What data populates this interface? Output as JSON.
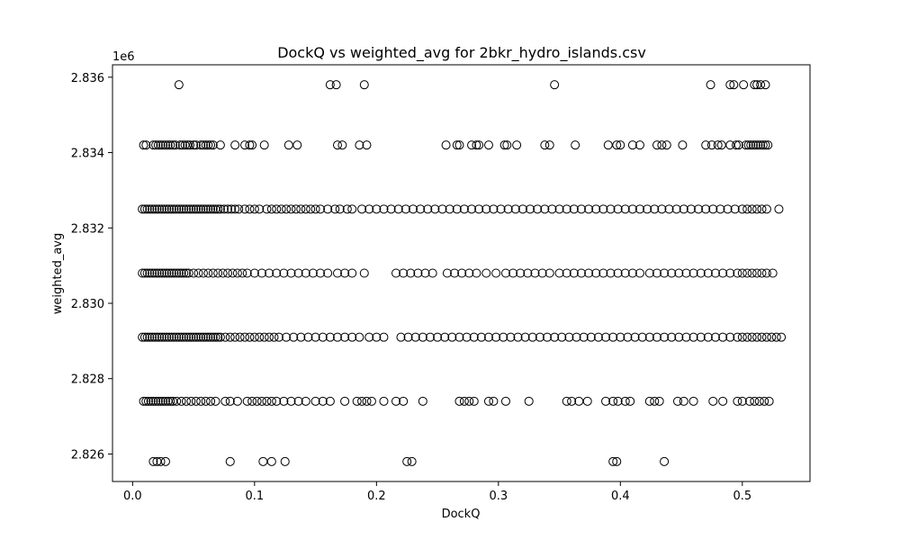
{
  "chart_data": {
    "type": "scatter",
    "title": "DockQ vs weighted_avg for 2bkr_hydro_islands.csv",
    "xlabel": "DockQ",
    "ylabel": "weighted_avg",
    "y_offset_label": "1e6",
    "xlim": [
      -0.0165,
      0.5555
    ],
    "ylim": [
      2825.27,
      2836.33
    ],
    "x_ticks": [
      0.0,
      0.1,
      0.2,
      0.3,
      0.4,
      0.5
    ],
    "x_tick_labels": [
      "0.0",
      "0.1",
      "0.2",
      "0.3",
      "0.4",
      "0.5"
    ],
    "y_ticks": [
      2826,
      2828,
      2830,
      2832,
      2834,
      2836
    ],
    "y_tick_labels": [
      "2.826",
      "2.828",
      "2.830",
      "2.832",
      "2.834",
      "2.836"
    ],
    "grid": false,
    "marker": "hollow-circle",
    "marker_color": "#000000",
    "series": [
      {
        "rows": [
          {
            "y": 2835.8,
            "x": [
              0.038,
              0.162,
              0.167,
              0.19,
              0.346,
              0.474,
              0.49,
              0.493,
              0.501,
              0.51,
              0.512,
              0.515,
              0.519
            ]
          },
          {
            "y": 2834.2,
            "x": [
              0.009,
              0.011,
              0.017,
              0.019,
              0.021,
              0.023,
              0.025,
              0.027,
              0.029,
              0.031,
              0.033,
              0.035,
              0.039,
              0.041,
              0.043,
              0.045,
              0.047,
              0.05,
              0.052,
              0.056,
              0.058,
              0.06,
              0.062,
              0.064,
              0.066,
              0.072,
              0.084,
              0.092,
              0.096,
              0.098,
              0.108,
              0.128,
              0.135,
              0.168,
              0.172,
              0.186,
              0.192,
              0.257,
              0.266,
              0.268,
              0.278,
              0.282,
              0.284,
              0.292,
              0.305,
              0.307,
              0.315,
              0.338,
              0.342,
              0.363,
              0.39,
              0.397,
              0.4,
              0.41,
              0.416,
              0.43,
              0.434,
              0.438,
              0.451,
              0.47,
              0.475,
              0.48,
              0.483,
              0.49,
              0.495,
              0.497,
              0.503,
              0.505,
              0.507,
              0.509,
              0.511,
              0.513,
              0.515,
              0.517,
              0.519,
              0.521
            ]
          },
          {
            "y": 2832.5,
            "x": [
              0.008,
              0.01,
              0.012,
              0.014,
              0.016,
              0.018,
              0.02,
              0.022,
              0.024,
              0.026,
              0.028,
              0.03,
              0.032,
              0.034,
              0.036,
              0.038,
              0.04,
              0.042,
              0.044,
              0.046,
              0.048,
              0.05,
              0.052,
              0.054,
              0.056,
              0.058,
              0.06,
              0.062,
              0.064,
              0.066,
              0.068,
              0.07,
              0.072,
              0.075,
              0.078,
              0.081,
              0.084,
              0.087,
              0.092,
              0.096,
              0.1,
              0.104,
              0.11,
              0.114,
              0.118,
              0.122,
              0.126,
              0.13,
              0.134,
              0.138,
              0.142,
              0.146,
              0.15,
              0.154,
              0.16,
              0.166,
              0.17,
              0.176,
              0.18,
              0.188,
              0.194,
              0.2,
              0.206,
              0.212,
              0.218,
              0.224,
              0.23,
              0.236,
              0.242,
              0.248,
              0.254,
              0.26,
              0.266,
              0.272,
              0.278,
              0.284,
              0.29,
              0.296,
              0.302,
              0.308,
              0.314,
              0.32,
              0.326,
              0.332,
              0.338,
              0.344,
              0.35,
              0.356,
              0.362,
              0.368,
              0.374,
              0.38,
              0.386,
              0.392,
              0.398,
              0.404,
              0.41,
              0.416,
              0.422,
              0.428,
              0.434,
              0.44,
              0.446,
              0.452,
              0.458,
              0.464,
              0.47,
              0.476,
              0.482,
              0.488,
              0.494,
              0.5,
              0.504,
              0.508,
              0.512,
              0.516,
              0.52,
              0.53
            ]
          },
          {
            "y": 2830.8,
            "x": [
              0.008,
              0.01,
              0.012,
              0.014,
              0.016,
              0.018,
              0.02,
              0.022,
              0.024,
              0.026,
              0.028,
              0.03,
              0.032,
              0.034,
              0.036,
              0.038,
              0.04,
              0.042,
              0.044,
              0.046,
              0.05,
              0.054,
              0.058,
              0.062,
              0.066,
              0.07,
              0.074,
              0.078,
              0.082,
              0.086,
              0.09,
              0.094,
              0.1,
              0.106,
              0.112,
              0.118,
              0.124,
              0.13,
              0.136,
              0.142,
              0.148,
              0.154,
              0.16,
              0.168,
              0.174,
              0.18,
              0.19,
              0.216,
              0.222,
              0.228,
              0.234,
              0.24,
              0.246,
              0.258,
              0.264,
              0.27,
              0.276,
              0.282,
              0.29,
              0.298,
              0.306,
              0.312,
              0.318,
              0.324,
              0.33,
              0.336,
              0.342,
              0.35,
              0.356,
              0.362,
              0.368,
              0.374,
              0.38,
              0.386,
              0.392,
              0.398,
              0.404,
              0.41,
              0.416,
              0.424,
              0.43,
              0.436,
              0.442,
              0.448,
              0.454,
              0.46,
              0.466,
              0.472,
              0.478,
              0.484,
              0.49,
              0.496,
              0.5,
              0.504,
              0.508,
              0.512,
              0.516,
              0.52,
              0.525
            ]
          },
          {
            "y": 2829.1,
            "x": [
              0.008,
              0.01,
              0.012,
              0.014,
              0.016,
              0.018,
              0.02,
              0.022,
              0.024,
              0.026,
              0.028,
              0.03,
              0.032,
              0.034,
              0.036,
              0.038,
              0.04,
              0.042,
              0.044,
              0.046,
              0.048,
              0.05,
              0.052,
              0.054,
              0.056,
              0.058,
              0.06,
              0.062,
              0.064,
              0.066,
              0.068,
              0.07,
              0.072,
              0.076,
              0.08,
              0.084,
              0.088,
              0.092,
              0.096,
              0.1,
              0.104,
              0.108,
              0.112,
              0.116,
              0.12,
              0.126,
              0.132,
              0.138,
              0.144,
              0.15,
              0.156,
              0.162,
              0.168,
              0.174,
              0.18,
              0.186,
              0.194,
              0.2,
              0.206,
              0.22,
              0.226,
              0.232,
              0.238,
              0.244,
              0.25,
              0.256,
              0.262,
              0.268,
              0.274,
              0.28,
              0.286,
              0.292,
              0.298,
              0.304,
              0.31,
              0.316,
              0.322,
              0.328,
              0.334,
              0.34,
              0.346,
              0.352,
              0.358,
              0.364,
              0.37,
              0.376,
              0.382,
              0.388,
              0.394,
              0.4,
              0.406,
              0.412,
              0.418,
              0.424,
              0.43,
              0.436,
              0.442,
              0.448,
              0.454,
              0.46,
              0.466,
              0.472,
              0.478,
              0.484,
              0.49,
              0.496,
              0.5,
              0.504,
              0.508,
              0.512,
              0.516,
              0.52,
              0.524,
              0.528,
              0.532
            ]
          },
          {
            "y": 2827.4,
            "x": [
              0.009,
              0.011,
              0.013,
              0.015,
              0.017,
              0.019,
              0.021,
              0.023,
              0.025,
              0.027,
              0.029,
              0.031,
              0.033,
              0.036,
              0.04,
              0.044,
              0.048,
              0.052,
              0.056,
              0.06,
              0.064,
              0.068,
              0.076,
              0.08,
              0.086,
              0.094,
              0.098,
              0.102,
              0.106,
              0.11,
              0.114,
              0.118,
              0.124,
              0.13,
              0.136,
              0.142,
              0.15,
              0.156,
              0.162,
              0.174,
              0.184,
              0.188,
              0.192,
              0.196,
              0.206,
              0.216,
              0.222,
              0.238,
              0.268,
              0.272,
              0.276,
              0.28,
              0.292,
              0.296,
              0.306,
              0.325,
              0.356,
              0.36,
              0.366,
              0.373,
              0.388,
              0.394,
              0.398,
              0.404,
              0.408,
              0.424,
              0.428,
              0.432,
              0.447,
              0.452,
              0.46,
              0.476,
              0.484,
              0.496,
              0.5,
              0.506,
              0.51,
              0.514,
              0.518,
              0.522
            ]
          },
          {
            "y": 2825.8,
            "x": [
              0.017,
              0.02,
              0.023,
              0.027,
              0.08,
              0.107,
              0.114,
              0.125,
              0.225,
              0.229,
              0.394,
              0.397,
              0.436
            ]
          }
        ]
      }
    ]
  }
}
